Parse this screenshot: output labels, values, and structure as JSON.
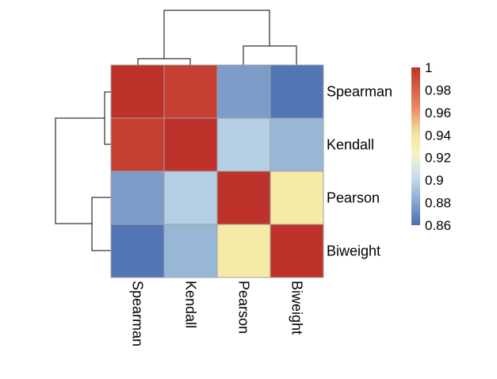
{
  "chart_data": {
    "type": "heatmap",
    "rows": [
      "Spearman",
      "Kendall",
      "Pearson",
      "Biweight"
    ],
    "cols": [
      "Spearman",
      "Kendall",
      "Pearson",
      "Biweight"
    ],
    "values": [
      [
        1.0,
        0.995,
        0.875,
        0.862
      ],
      [
        0.995,
        1.0,
        0.895,
        0.885
      ],
      [
        0.875,
        0.895,
        1.0,
        0.937
      ],
      [
        0.862,
        0.885,
        0.937,
        1.0
      ]
    ],
    "color_range": [
      0.86,
      1.0
    ],
    "colorscale": [
      "#4575b4",
      "#91bfdb",
      "#e0f3f8",
      "#ffffbf",
      "#fee090",
      "#fc8d59",
      "#d73027"
    ],
    "legend_ticks": [
      "1",
      "0.98",
      "0.96",
      "0.94",
      "0.92",
      "0.9",
      "0.88",
      "0.86"
    ],
    "legend_tick_values": [
      1.0,
      0.98,
      0.96,
      0.94,
      0.92,
      0.9,
      0.88,
      0.86
    ],
    "dendrogram": "row and column hierarchical clustering: {Spearman, Kendall} and {Pearson, Biweight}",
    "legend_placement": "right",
    "title": "",
    "xlabel": "",
    "ylabel": ""
  }
}
